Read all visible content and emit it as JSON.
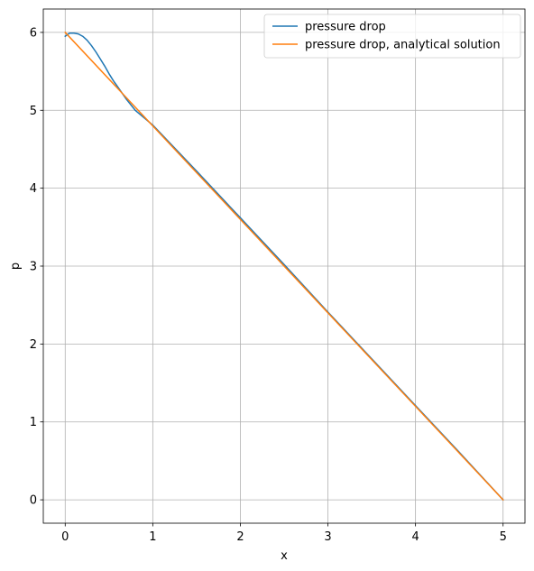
{
  "chart_data": {
    "type": "line",
    "title": "",
    "xlabel": "x",
    "ylabel": "p",
    "xlim": [
      -0.25,
      5.25
    ],
    "ylim": [
      -0.3,
      6.3
    ],
    "xticks": [
      "0",
      "1",
      "2",
      "3",
      "4",
      "5"
    ],
    "yticks": [
      "0",
      "1",
      "2",
      "3",
      "4",
      "5",
      "6"
    ],
    "grid": true,
    "legend_position": "upper right",
    "series": [
      {
        "name": "pressure drop",
        "color": "#1f77b4",
        "x": [
          0,
          0.05,
          0.1,
          0.15,
          0.2,
          0.25,
          0.3,
          0.35,
          0.4,
          0.45,
          0.5,
          0.55,
          0.6,
          0.7,
          0.8,
          1.0,
          1.5,
          2.0,
          2.5,
          3.0,
          3.5,
          4.0,
          4.5,
          5.0
        ],
        "y": [
          5.95,
          5.99,
          5.99,
          5.98,
          5.95,
          5.9,
          5.83,
          5.75,
          5.66,
          5.57,
          5.47,
          5.38,
          5.3,
          5.14,
          5.0,
          4.81,
          4.22,
          3.62,
          3.02,
          2.41,
          1.81,
          1.21,
          0.61,
          0.0
        ]
      },
      {
        "name": "pressure drop, analytical solution",
        "color": "#ff7f0e",
        "x": [
          0,
          5
        ],
        "y": [
          6.0,
          0.0
        ]
      }
    ]
  }
}
